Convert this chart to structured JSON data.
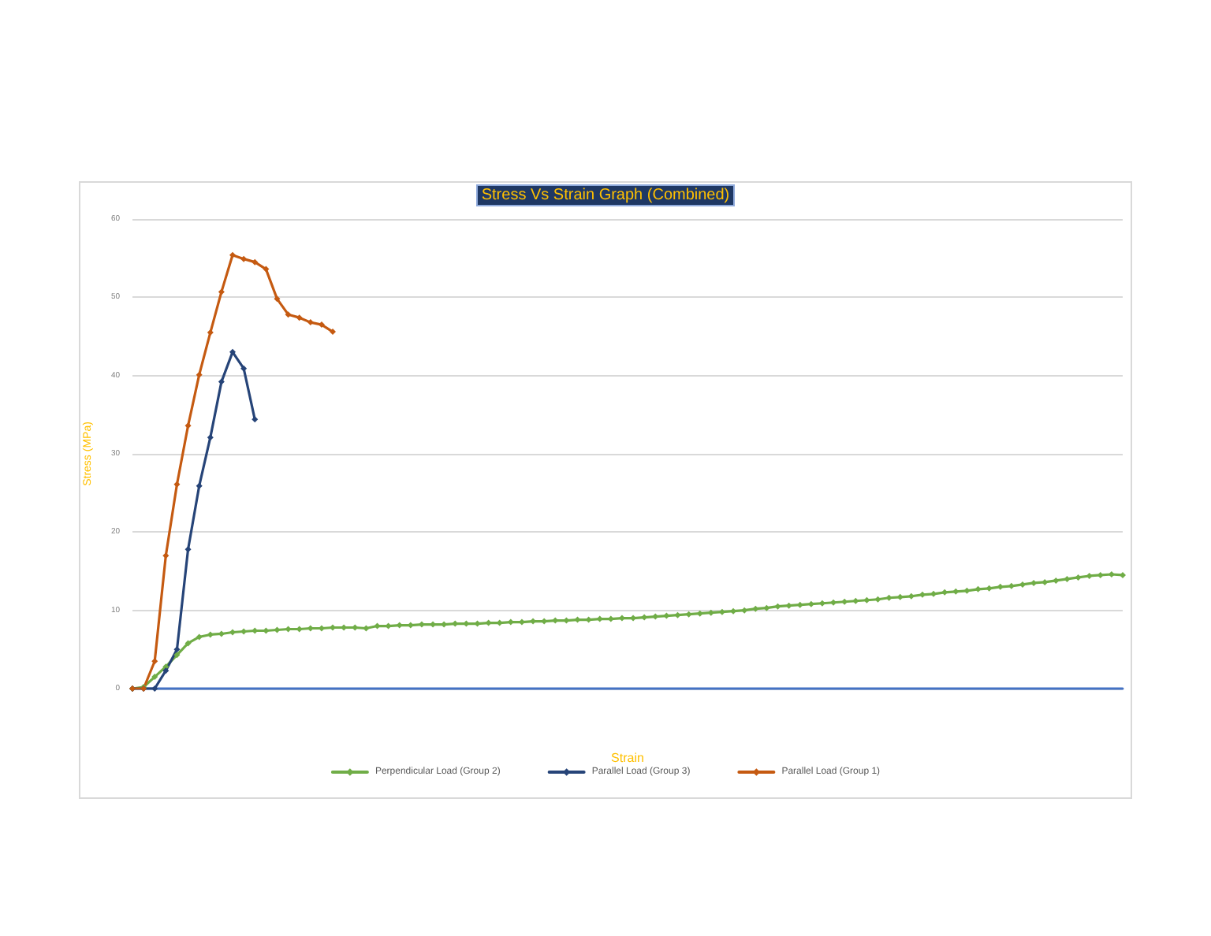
{
  "chart_data": {
    "type": "line",
    "title": "Stress Vs Strain Graph (Combined)",
    "xlabel": "Strain",
    "ylabel": "Stress (MPa)",
    "categories": [
      null,
      null,
      null,
      null,
      null,
      null,
      null,
      null,
      null,
      null,
      null,
      null,
      null,
      null,
      null,
      null,
      null,
      null,
      null,
      null,
      null,
      null,
      null,
      null,
      null,
      null,
      null,
      null,
      null,
      null,
      null,
      null,
      null,
      null,
      null,
      null,
      null,
      null,
      null,
      null,
      null,
      null,
      null,
      null,
      null,
      null,
      null,
      null,
      null,
      null,
      null,
      null,
      null,
      null,
      null,
      null,
      null,
      null,
      null,
      null,
      null,
      null,
      null,
      null,
      null,
      null,
      null,
      null,
      null,
      null,
      null,
      null,
      null,
      null,
      null,
      null,
      null,
      null,
      null,
      null,
      null,
      null,
      null,
      null,
      null,
      null,
      null,
      null,
      null,
      null
    ],
    "series": [
      {
        "name": "Perpendicular Load (Group 2)",
        "color": "#70ad47",
        "values": [
          0,
          0.2,
          1.5,
          2.8,
          4.3,
          5.8,
          6.6,
          6.9,
          7.0,
          7.2,
          7.3,
          7.4,
          7.4,
          7.5,
          7.6,
          7.6,
          7.7,
          7.7,
          7.8,
          7.8,
          7.8,
          7.7,
          8.0,
          8.0,
          8.1,
          8.1,
          8.2,
          8.2,
          8.2,
          8.3,
          8.3,
          8.3,
          8.4,
          8.4,
          8.5,
          8.5,
          8.6,
          8.6,
          8.7,
          8.7,
          8.8,
          8.8,
          8.9,
          8.9,
          9.0,
          9.0,
          9.1,
          9.2,
          9.3,
          9.4,
          9.5,
          9.6,
          9.7,
          9.8,
          9.9,
          10.0,
          10.2,
          10.3,
          10.5,
          10.6,
          10.7,
          10.8,
          10.9,
          11.0,
          11.1,
          11.2,
          11.3,
          11.4,
          11.6,
          11.7,
          11.8,
          12.0,
          12.1,
          12.3,
          12.4,
          12.5,
          12.7,
          12.8,
          13.0,
          13.1,
          13.3,
          13.5,
          13.6,
          13.8,
          14.0,
          14.2,
          14.4,
          14.5,
          14.6,
          14.5
        ]
      },
      {
        "name": "Parallel Load (Group 3)",
        "color": "#264478",
        "values": [
          0,
          0,
          0,
          2.3,
          5.0,
          17.8,
          25.9,
          32.1,
          39.2,
          43.0,
          40.9,
          34.4,
          null,
          null,
          null,
          null,
          null,
          null,
          null,
          null,
          null,
          null,
          null,
          null,
          null,
          null,
          null,
          null,
          null,
          null,
          null,
          null,
          null,
          null,
          null,
          null,
          null,
          null,
          null,
          null,
          null,
          null,
          null,
          null,
          null,
          null,
          null,
          null,
          null,
          null,
          null,
          null,
          null,
          null,
          null,
          null,
          null,
          null,
          null,
          null,
          null,
          null,
          null,
          null,
          null,
          null,
          null,
          null,
          null,
          null,
          null,
          null,
          null,
          null,
          null,
          null,
          null,
          null,
          null,
          null,
          null,
          null,
          null,
          null,
          null,
          null,
          null,
          null,
          null,
          null
        ]
      },
      {
        "name": "Parallel Load (Group 1)",
        "color": "#c55a11",
        "values": [
          0,
          0,
          3.5,
          17.0,
          26.1,
          33.6,
          40.1,
          45.5,
          50.7,
          55.4,
          54.9,
          54.5,
          53.6,
          49.8,
          47.8,
          47.4,
          46.8,
          46.5,
          45.6,
          null,
          null,
          null,
          null,
          null,
          null,
          null,
          null,
          null,
          null,
          null,
          null,
          null,
          null,
          null,
          null,
          null,
          null,
          null,
          null,
          null,
          null,
          null,
          null,
          null,
          null,
          null,
          null,
          null,
          null,
          null,
          null,
          null,
          null,
          null,
          null,
          null,
          null,
          null,
          null,
          null,
          null,
          null,
          null,
          null,
          null,
          null,
          null,
          null,
          null,
          null,
          null,
          null,
          null,
          null,
          null,
          null,
          null,
          null,
          null,
          null,
          null,
          null,
          null,
          null,
          null,
          null,
          null,
          null,
          null,
          null
        ]
      }
    ],
    "ylim": [
      0,
      60
    ],
    "yticks": [
      0,
      10,
      20,
      30,
      40,
      50,
      60
    ],
    "grid": "y",
    "legend": "bottom",
    "marker": "diamond",
    "line_style": "solid"
  }
}
